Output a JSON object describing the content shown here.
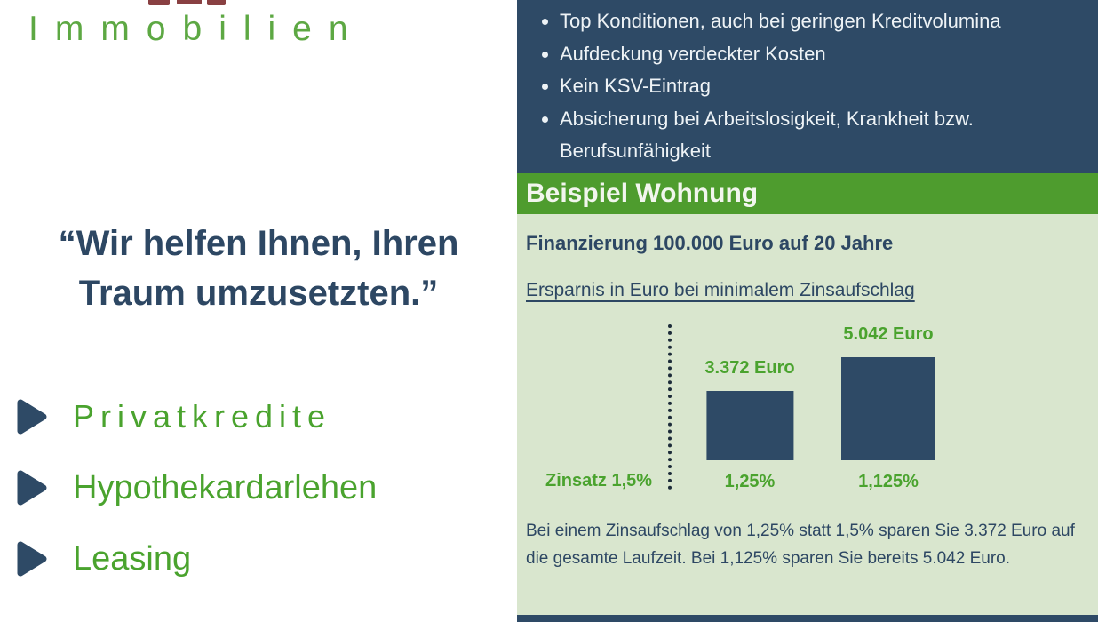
{
  "brand": {
    "name": "Immobilien"
  },
  "quote": {
    "line1": "“Wir helfen Ihnen, Ihren",
    "line2": "Traum umzusetzten.”"
  },
  "services": {
    "items": [
      {
        "label": "Privatkredite"
      },
      {
        "label": "Hypothekardarlehen"
      },
      {
        "label": "Leasing"
      }
    ]
  },
  "benefits": {
    "items": [
      "Top Konditionen, auch bei geringen Kreditvolumina",
      "Aufdeckung verdeckter Kosten",
      "Kein KSV-Eintrag",
      "Absicherung bei Arbeitslosigkeit, Krankheit bzw. Berufsunfähigkeit"
    ]
  },
  "example": {
    "banner": "Beispiel Wohnung",
    "heading": "Finanzierung 100.000 Euro auf 20 Jahre",
    "subheading": "Ersparnis in Euro bei minimalem Zinsaufschlag",
    "body": "Bei einem Zinsaufschlag von 1,25% statt 1,5% sparen Sie 3.372 Euro auf die gesamte Laufzeit. Bei 1,125% sparen Sie bereits 5.042 Euro."
  },
  "chart_data": {
    "type": "bar",
    "title": "Ersparnis in Euro bei minimalem Zinsaufschlag",
    "categories": [
      "1,25%",
      "1,125%"
    ],
    "values": [
      3372,
      5042
    ],
    "value_labels": [
      "3.372 Euro",
      "5.042 Euro"
    ],
    "baseline_label": "Zinsatz 1,5%",
    "baseline_note": "dotted reference line at Zinsatz 1,5% (savings = 0)",
    "ylim": [
      0,
      5042
    ],
    "grid": false,
    "legend": false,
    "bar_color": "#2e4a66",
    "label_color": "#4aa32e"
  },
  "icons": {
    "service_arrow": "right-pointing triangle",
    "benefit_bullet": "•"
  },
  "colors": {
    "navy": "#2e4a66",
    "banner_green": "#4e9c2e",
    "light_green": "#d9e6ce",
    "text_green": "#4aa32e",
    "logo_green": "#5da843",
    "text_navy": "#2d4763",
    "maroon_fragment": "#7c2b2e"
  }
}
